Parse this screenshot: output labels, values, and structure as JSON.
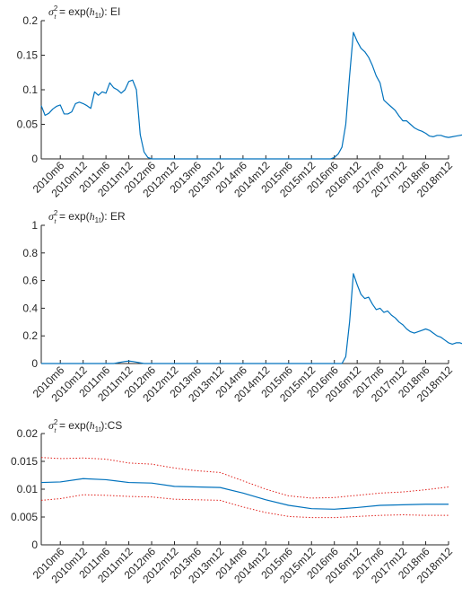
{
  "colors": {
    "series": "#0072bd",
    "bands": "#e0201b",
    "axis": "#262626"
  },
  "chart_data": [
    {
      "type": "line",
      "title": "σ²_t = exp(h_1t): EI",
      "title_parts": {
        "sigma": "σ",
        "sup": "2",
        "sub": "t",
        "eq": " = exp(",
        "h": "h",
        "hsub": "1t",
        "tail": "): EI"
      },
      "ylim": [
        0,
        0.2
      ],
      "yticks": [
        "0",
        "0.05",
        "0.1",
        "0.15",
        "0.2"
      ],
      "ytick_values": [
        0,
        0.05,
        0.1,
        0.15,
        0.2
      ],
      "xlabels": [
        "2010m6",
        "2010m12",
        "2011m6",
        "2011m12",
        "2012m6",
        "2012m12",
        "2013m6",
        "2013m12",
        "2014m6",
        "2014m12",
        "2015m6",
        "2015m12",
        "2016m6",
        "2016m12",
        "2017m6",
        "2017m12",
        "2018m6",
        "2018m12"
      ],
      "x_start": "2010m1",
      "series": [
        {
          "values": [
            0.077,
            0.063,
            0.066,
            0.072,
            0.076,
            0.078,
            0.065,
            0.065,
            0.068,
            0.08,
            0.082,
            0.08,
            0.077,
            0.073,
            0.097,
            0.092,
            0.097,
            0.095,
            0.11,
            0.103,
            0.1,
            0.095,
            0.1,
            0.112,
            0.114,
            0.1,
            0.035,
            0.01,
            0.002,
            0,
            0,
            0,
            0,
            0,
            0,
            0,
            0,
            0,
            0,
            0,
            0,
            0,
            0,
            0,
            0,
            0,
            0,
            0,
            0,
            0,
            0,
            0,
            0,
            0,
            0,
            0,
            0,
            0,
            0,
            0,
            0,
            0,
            0,
            0,
            0,
            0,
            0,
            0,
            0,
            0,
            0,
            0,
            0,
            0,
            0,
            0,
            0,
            0.002,
            0.007,
            0.017,
            0.05,
            0.12,
            0.183,
            0.17,
            0.16,
            0.155,
            0.147,
            0.135,
            0.12,
            0.11,
            0.085,
            0.08,
            0.075,
            0.07,
            0.062,
            0.055,
            0.055,
            0.05,
            0.045,
            0.042,
            0.04,
            0.037,
            0.033,
            0.032,
            0.034,
            0.034,
            0.032,
            0.031,
            0.032,
            0.033,
            0.034,
            0.035,
            0.035,
            0.034,
            0.033,
            0.032,
            0.031,
            0.031
          ]
        }
      ]
    },
    {
      "type": "line",
      "title": "σ²_t = exp(h_1t): ER",
      "title_parts": {
        "sigma": "σ",
        "sup": "2",
        "sub": "t",
        "eq": " = exp(",
        "h": "h",
        "hsub": "1t",
        "tail": "): ER"
      },
      "ylim": [
        0,
        1
      ],
      "yticks": [
        "0",
        "0.2",
        "0.4",
        "0.6",
        "0.8",
        "1"
      ],
      "ytick_values": [
        0,
        0.2,
        0.4,
        0.6,
        0.8,
        1
      ],
      "xlabels": [
        "2010m6",
        "2010m12",
        "2011m6",
        "2011m12",
        "2012m6",
        "2012m12",
        "2013m6",
        "2013m12",
        "2014m6",
        "2014m12",
        "2015m6",
        "2015m12",
        "2016m6",
        "2016m12",
        "2017m6",
        "2017m12",
        "2018m6",
        "2018m12"
      ],
      "x_start": "2010m1",
      "series": [
        {
          "values": [
            0,
            0,
            0,
            0,
            0,
            0,
            0,
            0,
            0,
            0,
            0,
            0,
            0,
            0,
            0,
            0,
            0,
            0,
            0,
            0,
            0.005,
            0.01,
            0.015,
            0.018,
            0.015,
            0.01,
            0.005,
            0,
            0,
            0,
            0,
            0,
            0,
            0,
            0,
            0,
            0,
            0,
            0,
            0,
            0,
            0,
            0,
            0,
            0,
            0,
            0,
            0,
            0,
            0,
            0,
            0,
            0,
            0,
            0,
            0,
            0,
            0,
            0,
            0,
            0,
            0,
            0,
            0,
            0,
            0,
            0,
            0,
            0,
            0,
            0,
            0,
            0,
            0,
            0,
            0,
            0,
            0,
            0,
            0,
            0.05,
            0.3,
            0.65,
            0.57,
            0.5,
            0.47,
            0.48,
            0.43,
            0.39,
            0.4,
            0.37,
            0.38,
            0.35,
            0.33,
            0.3,
            0.28,
            0.25,
            0.23,
            0.22,
            0.23,
            0.24,
            0.25,
            0.24,
            0.22,
            0.2,
            0.19,
            0.17,
            0.15,
            0.14,
            0.15,
            0.15,
            0.14,
            0.15,
            0.16,
            0.15,
            0.16,
            0.15,
            0.16,
            0.17,
            0.16,
            0.17,
            0.165
          ]
        }
      ]
    },
    {
      "type": "line",
      "title": "σ²_t = exp(h_1t):CS",
      "title_parts": {
        "sigma": "σ",
        "sup": "2",
        "sub": "t",
        "eq": " = exp(",
        "h": "h",
        "hsub": "1t",
        "tail": "):CS"
      },
      "ylim": [
        0,
        0.02
      ],
      "yticks": [
        "0",
        "0.005",
        "0.01",
        "0.015",
        "0.02"
      ],
      "ytick_values": [
        0,
        0.005,
        0.01,
        0.015,
        0.02
      ],
      "xlabels": [
        "2010m6",
        "2010m12",
        "2011m6",
        "2011m12",
        "2012m6",
        "2012m12",
        "2013m6",
        "2013m12",
        "2014m6",
        "2014m12",
        "2015m6",
        "2015m12",
        "2016m6",
        "2016m12",
        "2017m6",
        "2017m12",
        "2018m6",
        "2018m12"
      ],
      "x_start": "2010m1",
      "series": [
        {
          "style": "solid",
          "values_at_labels": [
            0.0113,
            0.0119,
            0.0117,
            0.0112,
            0.0111,
            0.0105,
            0.0104,
            0.0103,
            0.0093,
            0.0081,
            0.0071,
            0.0065,
            0.0064,
            0.0067,
            0.0071,
            0.0072,
            0.0073,
            0.0073
          ],
          "start": 0.0112
        },
        {
          "style": "dotted",
          "values_at_labels": [
            0.0155,
            0.0156,
            0.0154,
            0.0147,
            0.0145,
            0.0138,
            0.0133,
            0.013,
            0.0115,
            0.01,
            0.0088,
            0.0084,
            0.0085,
            0.0089,
            0.0093,
            0.0095,
            0.0099,
            0.0104
          ],
          "start": 0.0157
        },
        {
          "style": "dotted",
          "values_at_labels": [
            0.0083,
            0.009,
            0.0089,
            0.0087,
            0.0086,
            0.0082,
            0.0081,
            0.008,
            0.0068,
            0.0058,
            0.0051,
            0.0049,
            0.0049,
            0.0051,
            0.0053,
            0.0054,
            0.0053,
            0.0053
          ],
          "start": 0.008
        }
      ]
    }
  ]
}
